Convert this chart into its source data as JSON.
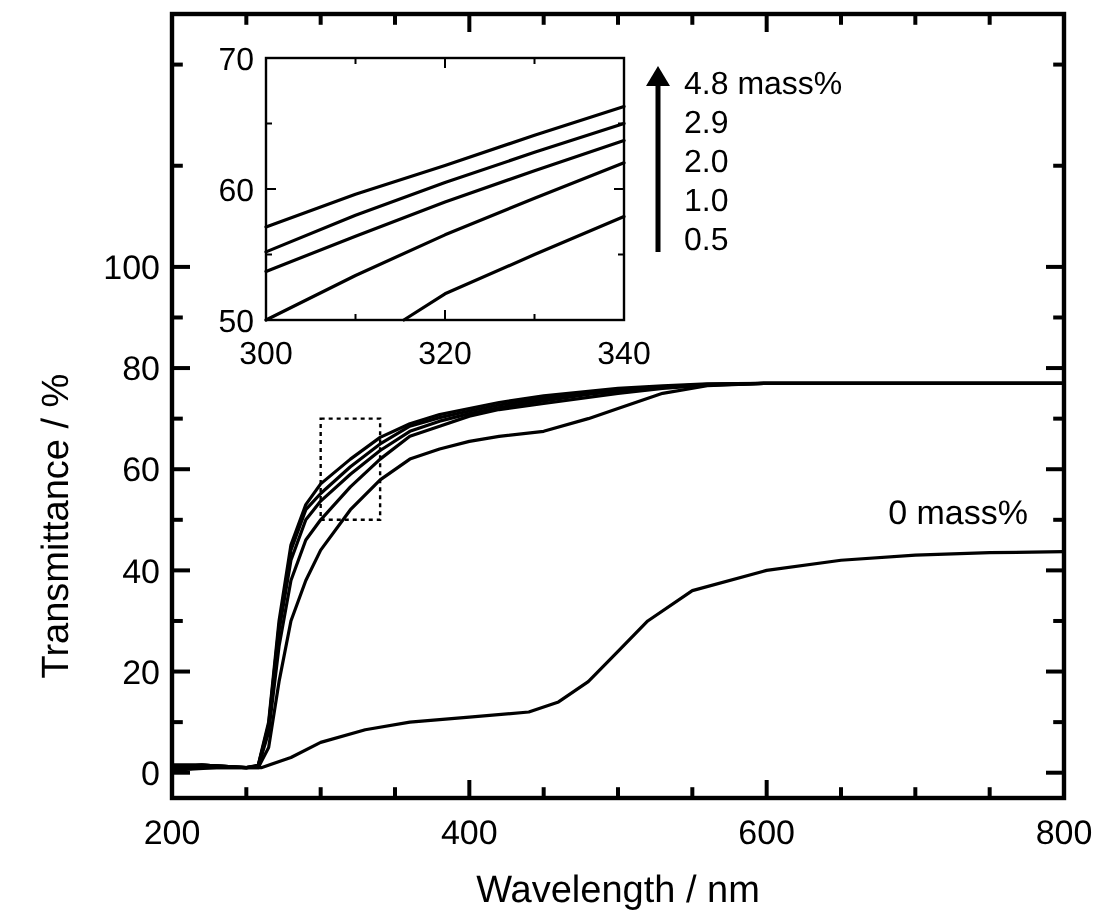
{
  "chart_data": [
    {
      "type": "line",
      "xlabel": "Wavelength / nm",
      "ylabel": "Transmittance / %",
      "xlim": [
        200,
        800
      ],
      "ylim": [
        -5,
        150
      ],
      "xticks": [
        200,
        {
          "value": 250,
          "label": null
        },
        {
          "value": 300,
          "label": null
        },
        {
          "value": 350,
          "label": null
        },
        400,
        {
          "value": 450,
          "label": null
        },
        {
          "value": 500,
          "label": null
        },
        {
          "value": 550,
          "label": null
        },
        600,
        {
          "value": 650,
          "label": null
        },
        {
          "value": 700,
          "label": null
        },
        {
          "value": 750,
          "label": null
        },
        800
      ],
      "yticks": [
        0,
        {
          "value": 10,
          "label": null
        },
        20,
        {
          "value": 30,
          "label": null
        },
        40,
        {
          "value": 50,
          "label": null
        },
        60,
        {
          "value": 70,
          "label": null
        },
        80,
        {
          "value": 90,
          "label": null
        },
        100,
        {
          "value": 120,
          "label": null
        },
        {
          "value": 140,
          "label": null
        }
      ],
      "x": [
        200,
        220,
        250,
        258,
        265,
        272,
        280,
        290,
        300,
        320,
        340,
        360,
        380,
        400,
        420,
        450,
        480,
        500,
        530,
        560,
        600,
        700,
        800
      ],
      "series": [
        {
          "name": "0 mass%",
          "color": "#000000",
          "x": [
            200,
            230,
            260,
            280,
            300,
            330,
            360,
            400,
            440,
            460,
            480,
            500,
            520,
            550,
            600,
            650,
            700,
            750,
            800
          ],
          "values": [
            0.5,
            1,
            1,
            3,
            6,
            8.5,
            10,
            11,
            12,
            14,
            18,
            24,
            30,
            36,
            40,
            42,
            43,
            43.5,
            43.7
          ]
        },
        {
          "color": "#000000",
          "values": [
            0.5,
            1,
            1,
            1,
            5,
            18,
            30,
            38,
            44,
            52,
            57.9,
            62,
            64,
            65.5,
            66.5,
            67.5,
            70,
            72,
            75,
            76.5,
            77,
            77,
            77
          ]
        },
        {
          "color": "#000000",
          "values": [
            1,
            1.5,
            1,
            1.2,
            8,
            25,
            38,
            46,
            50,
            56.5,
            62,
            66.5,
            68.5,
            70.5,
            71.8,
            73,
            74.2,
            75,
            76,
            76.6,
            77,
            77,
            77
          ]
        },
        {
          "color": "#000000",
          "values": [
            1,
            1.5,
            1,
            1.3,
            9,
            28,
            42,
            50,
            53.7,
            59,
            63.7,
            67.5,
            69.5,
            71,
            72.2,
            73.5,
            74.8,
            75.5,
            76.2,
            76.7,
            77,
            77,
            77
          ]
        },
        {
          "color": "#000000",
          "values": [
            1.5,
            1.5,
            1,
            1.4,
            9.5,
            29,
            44,
            52,
            55.2,
            60.5,
            65,
            68.5,
            70.2,
            71.5,
            72.7,
            74,
            75,
            75.5,
            76.3,
            76.8,
            77,
            77,
            77
          ]
        },
        {
          "color": "#000000",
          "values": [
            1.5,
            1.5,
            1,
            1.5,
            10,
            30,
            45,
            53,
            57.1,
            62,
            66.3,
            69,
            70.8,
            72,
            73.2,
            74.5,
            75.4,
            76,
            76.5,
            76.9,
            77,
            77,
            77
          ]
        }
      ],
      "line_style": "solid",
      "marker": "none",
      "grid": false,
      "legend": "right"
    },
    {
      "type": "line",
      "xlim": [
        300,
        340
      ],
      "ylim": [
        50,
        70
      ],
      "xticks": [
        300,
        {
          "value": 310,
          "label": null
        },
        320,
        {
          "value": 330,
          "label": null
        },
        340
      ],
      "yticks": [
        50,
        {
          "value": 55,
          "label": null
        },
        60,
        {
          "value": 65,
          "label": null
        },
        70
      ],
      "x": [
        300,
        310,
        320,
        330,
        340
      ],
      "series": [
        {
          "name": "4.8 mass%",
          "color": "#000000",
          "values": [
            57.1,
            59.6,
            61.8,
            64.1,
            66.3
          ]
        },
        {
          "name": "2.9",
          "color": "#000000",
          "values": [
            55.2,
            58,
            60.5,
            62.8,
            65.0
          ]
        },
        {
          "name": "2.0",
          "color": "#000000",
          "values": [
            53.7,
            56.4,
            59,
            61.4,
            63.7
          ]
        },
        {
          "name": "1.0",
          "color": "#000000",
          "values": [
            50,
            53.4,
            56.5,
            59.3,
            62.0
          ]
        },
        {
          "name": "0.5",
          "color": "#000000",
          "x": [
            315.4,
            320,
            330,
            340
          ],
          "values": [
            50,
            52,
            55,
            57.9
          ]
        }
      ],
      "line_style": "solid",
      "marker": "none",
      "grid": false,
      "legend": "right"
    }
  ]
}
